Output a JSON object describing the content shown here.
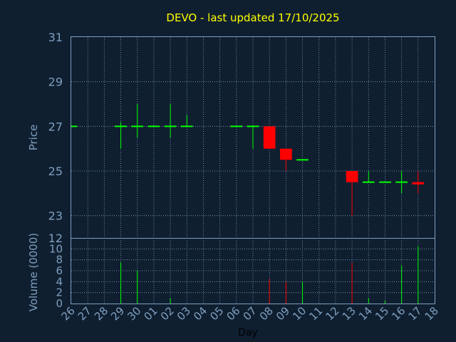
{
  "chart_data": [
    {
      "type": "candlestick",
      "title": "DEVO - last updated 17/10/2025",
      "xlabel": "Day",
      "ylabel": "Price",
      "ylim": [
        22,
        31
      ],
      "y_ticks": [
        "23",
        "25",
        "27",
        "29",
        "31"
      ],
      "x_ticks": [
        "26",
        "27",
        "28",
        "29",
        "30",
        "01",
        "02",
        "03",
        "04",
        "05",
        "06",
        "07",
        "08",
        "09",
        "10",
        "11",
        "12",
        "13",
        "14",
        "15",
        "16",
        "17",
        "18"
      ],
      "grid": true,
      "colors": {
        "up": "#00ff00",
        "down": "#ff0000",
        "title": "#ffff00",
        "axis": "#7f9fbf",
        "background": "#0f1f30"
      },
      "candles": [
        {
          "day": "26",
          "open": 27.0,
          "high": 27.0,
          "low": 27.0,
          "close": 27.0,
          "partial": true
        },
        {
          "day": "29",
          "open": 27.0,
          "high": 27.2,
          "low": 26.0,
          "close": 27.0
        },
        {
          "day": "30",
          "open": 27.0,
          "high": 28.0,
          "low": 26.5,
          "close": 27.0
        },
        {
          "day": "01",
          "open": 27.0,
          "high": 27.0,
          "low": 27.0,
          "close": 27.0
        },
        {
          "day": "02",
          "open": 27.0,
          "high": 28.0,
          "low": 26.5,
          "close": 27.0
        },
        {
          "day": "03",
          "open": 27.0,
          "high": 27.5,
          "low": 27.0,
          "close": 27.0
        },
        {
          "day": "06",
          "open": 27.0,
          "high": 27.0,
          "low": 27.0,
          "close": 27.0
        },
        {
          "day": "07",
          "open": 27.0,
          "high": 27.0,
          "low": 26.0,
          "close": 27.0
        },
        {
          "day": "08",
          "open": 27.0,
          "high": 27.0,
          "low": 26.0,
          "close": 26.0
        },
        {
          "day": "09",
          "open": 26.0,
          "high": 26.0,
          "low": 25.0,
          "close": 25.5
        },
        {
          "day": "10",
          "open": 25.5,
          "high": 25.5,
          "low": 25.5,
          "close": 25.5
        },
        {
          "day": "13",
          "open": 25.0,
          "high": 25.0,
          "low": 23.0,
          "close": 24.5
        },
        {
          "day": "14",
          "open": 24.5,
          "high": 25.0,
          "low": 24.5,
          "close": 24.5
        },
        {
          "day": "15",
          "open": 24.5,
          "high": 24.5,
          "low": 24.5,
          "close": 24.5
        },
        {
          "day": "16",
          "open": 24.5,
          "high": 25.0,
          "low": 24.0,
          "close": 24.5
        },
        {
          "day": "17",
          "open": 24.5,
          "high": 25.0,
          "low": 24.0,
          "close": 24.4
        }
      ]
    },
    {
      "type": "bar",
      "ylabel": "Volume (0000)",
      "ylim": [
        0,
        12
      ],
      "y_ticks": [
        "0",
        "2",
        "4",
        "6",
        "8",
        "10",
        "12"
      ],
      "grid": true,
      "volumes": [
        {
          "day": "29",
          "value": 7.5,
          "direction": "up"
        },
        {
          "day": "30",
          "value": 6.0,
          "direction": "up"
        },
        {
          "day": "02",
          "value": 1.0,
          "direction": "up"
        },
        {
          "day": "08",
          "value": 4.5,
          "direction": "down"
        },
        {
          "day": "09",
          "value": 4.0,
          "direction": "down"
        },
        {
          "day": "10",
          "value": 4.0,
          "direction": "up"
        },
        {
          "day": "13",
          "value": 7.5,
          "direction": "down"
        },
        {
          "day": "14",
          "value": 1.0,
          "direction": "up"
        },
        {
          "day": "15",
          "value": 0.5,
          "direction": "up"
        },
        {
          "day": "16",
          "value": 7.0,
          "direction": "up"
        },
        {
          "day": "17",
          "value": 10.5,
          "direction": "up"
        }
      ]
    }
  ]
}
